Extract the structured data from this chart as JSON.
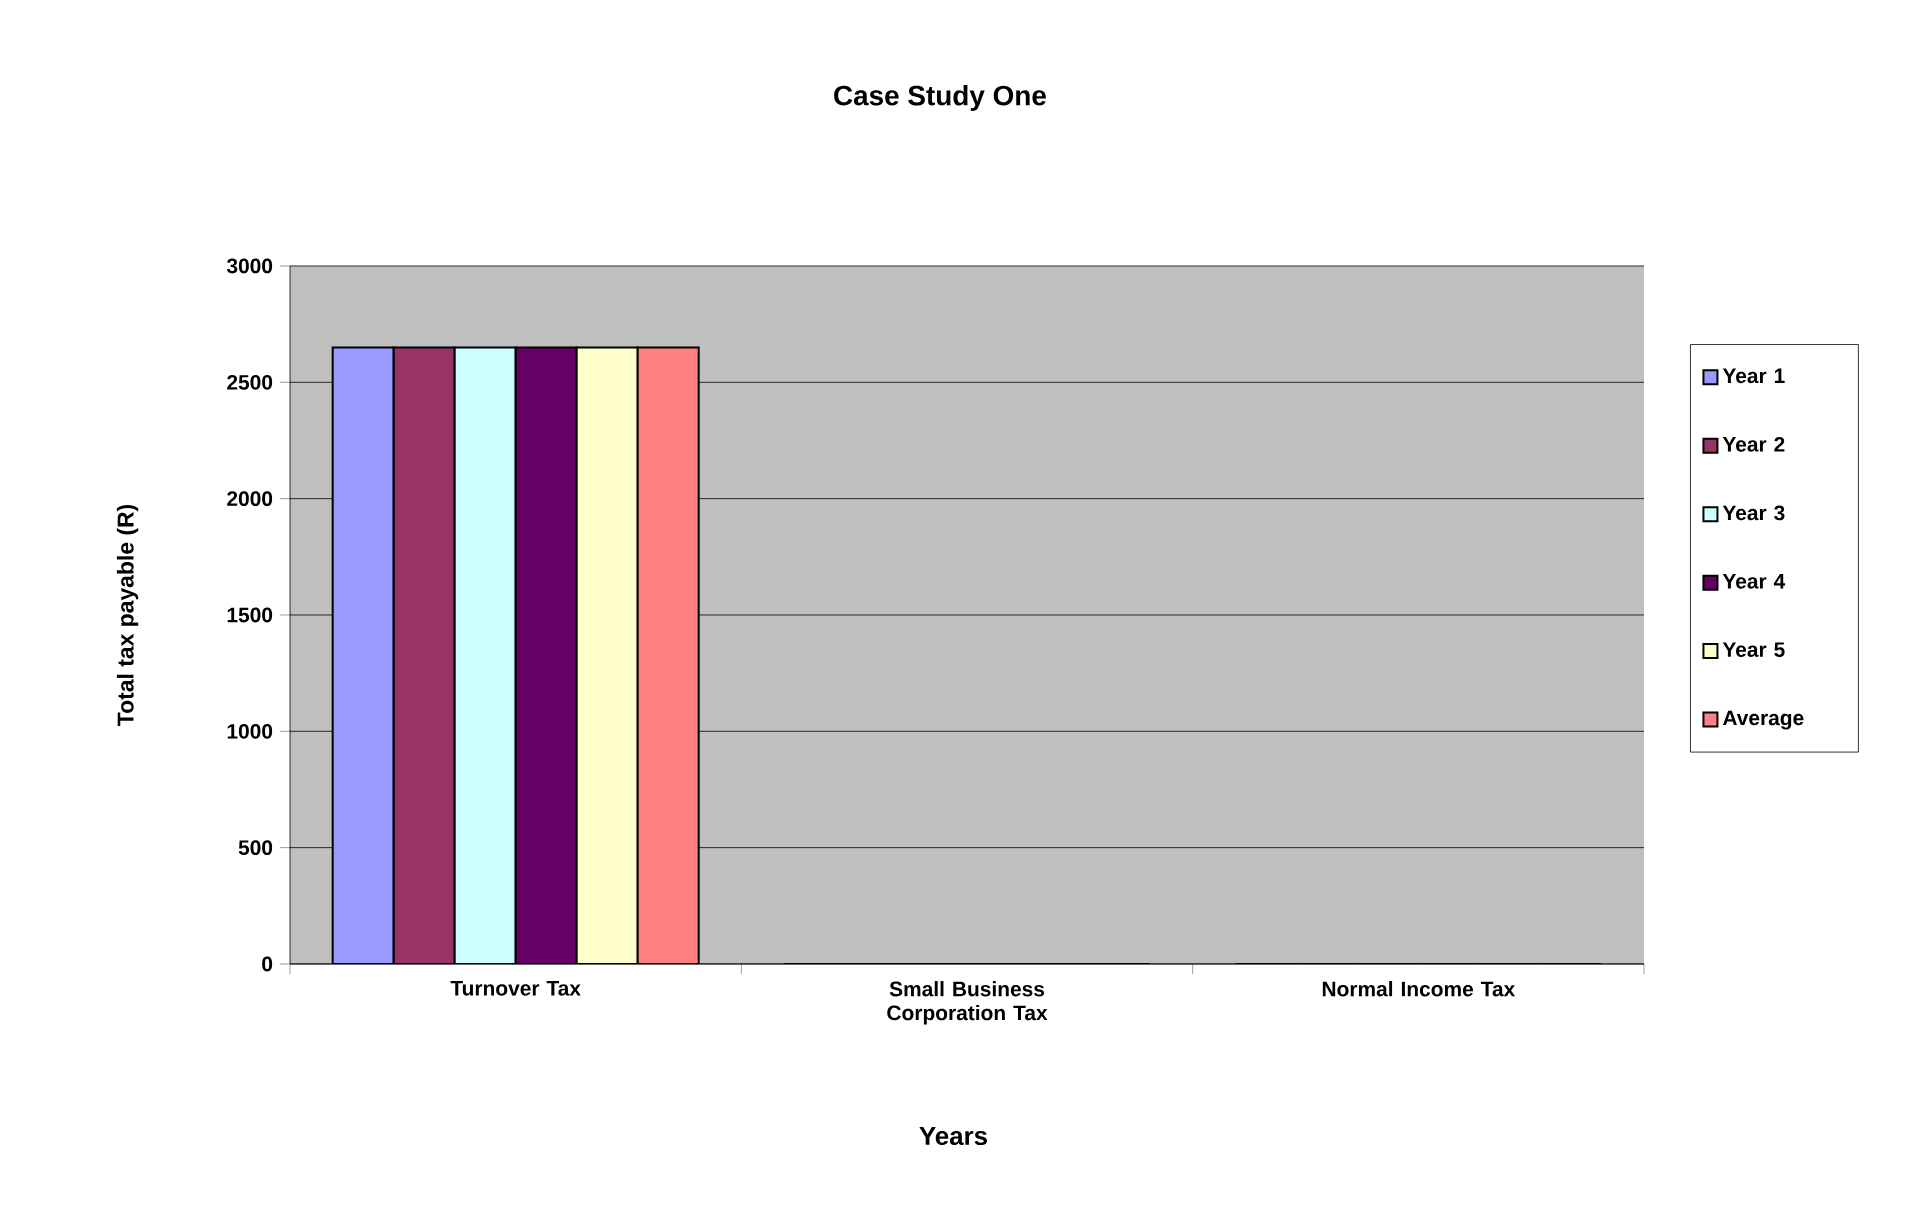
{
  "chart_data": {
    "type": "bar",
    "title": "Case Study One",
    "xlabel": "Years",
    "ylabel": "Total tax payable (R)",
    "categories": [
      "Turnover Tax",
      "Small Business Corporation Tax",
      "Normal  Income Tax"
    ],
    "series": [
      {
        "name": "Year 1",
        "color": "#9999ff",
        "values": [
          2650,
          0,
          0
        ]
      },
      {
        "name": "Year 2",
        "color": "#993366",
        "values": [
          2650,
          0,
          0
        ]
      },
      {
        "name": "Year 3",
        "color": "#ccffff",
        "values": [
          2650,
          0,
          0
        ]
      },
      {
        "name": "Year 4",
        "color": "#660066",
        "values": [
          2650,
          0,
          0
        ]
      },
      {
        "name": "Year 5",
        "color": "#ffffcc",
        "values": [
          2650,
          0,
          0
        ]
      },
      {
        "name": "Average",
        "color": "#ff8080",
        "values": [
          2650,
          0,
          0
        ]
      }
    ],
    "ylim": [
      0,
      3000
    ],
    "yticks": [
      0,
      500,
      1000,
      1500,
      2000,
      2500,
      3000
    ],
    "grid": "y",
    "legend": "right"
  }
}
